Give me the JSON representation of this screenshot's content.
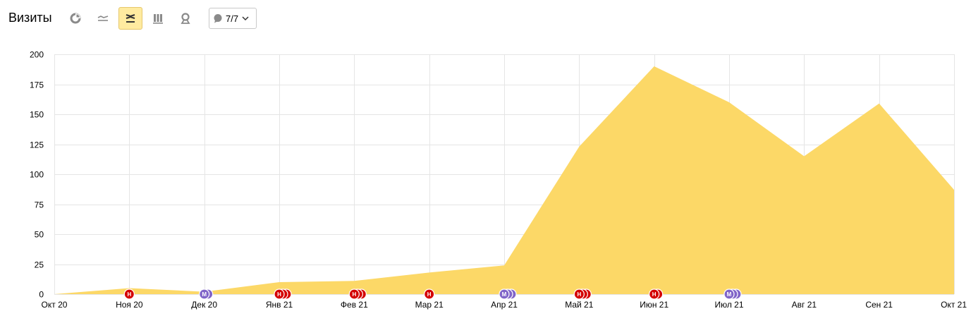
{
  "header": {
    "title": "Визиты",
    "annotations_label": "7/7"
  },
  "toolbar": {
    "buttons": [
      {
        "icon": "pie-chart-icon",
        "active": false
      },
      {
        "icon": "line-chart-icon",
        "active": false
      },
      {
        "icon": "area-chart-icon",
        "active": true
      },
      {
        "icon": "bar-chart-icon",
        "active": false
      },
      {
        "icon": "map-pin-icon",
        "active": false
      }
    ]
  },
  "colors": {
    "area_fill": "#fcd867",
    "grid": "#e5e5e5",
    "marker_red": "#d40000",
    "marker_purple": "#8064c8",
    "active_button_bg": "#ffeba0"
  },
  "chart_data": {
    "type": "area",
    "title": "",
    "xlabel": "",
    "ylabel": "",
    "categories": [
      "Окт 20",
      "Ноя 20",
      "Дек 20",
      "Янв 21",
      "Фев 21",
      "Мар 21",
      "Апр 21",
      "Май 21",
      "Июн 21",
      "Июл 21",
      "Авг 21",
      "Сен 21",
      "Окт 21"
    ],
    "series": [
      {
        "values": [
          0,
          5,
          2,
          10,
          11,
          18,
          24,
          123,
          190,
          160,
          115,
          159,
          87
        ]
      }
    ],
    "ylim": [
      0,
      200
    ],
    "yticks": [
      0,
      25,
      50,
      75,
      100,
      125,
      150,
      175,
      200
    ],
    "grid": true,
    "legend": "none",
    "annotations": [
      {
        "category": "Ноя 20",
        "letter": "Н",
        "color": "red",
        "count": 1
      },
      {
        "category": "Дек 20",
        "letter": "М",
        "color": "purple",
        "count": 2
      },
      {
        "category": "Янв 21",
        "letter": "Н",
        "color": "red",
        "count": 3
      },
      {
        "category": "Фев 21",
        "letter": "Н",
        "color": "red",
        "count": 3
      },
      {
        "category": "Мар 21",
        "letter": "Н",
        "color": "red",
        "count": 1
      },
      {
        "category": "Апр 21",
        "letter": "М",
        "color": "purple",
        "count": 3
      },
      {
        "category": "Май 21",
        "letter": "Н",
        "color": "red",
        "count": 3
      },
      {
        "category": "Июн 21",
        "letter": "Н",
        "color": "red",
        "count": 2
      },
      {
        "category": "Июл 21",
        "letter": "М",
        "color": "purple",
        "count": 3
      }
    ]
  }
}
